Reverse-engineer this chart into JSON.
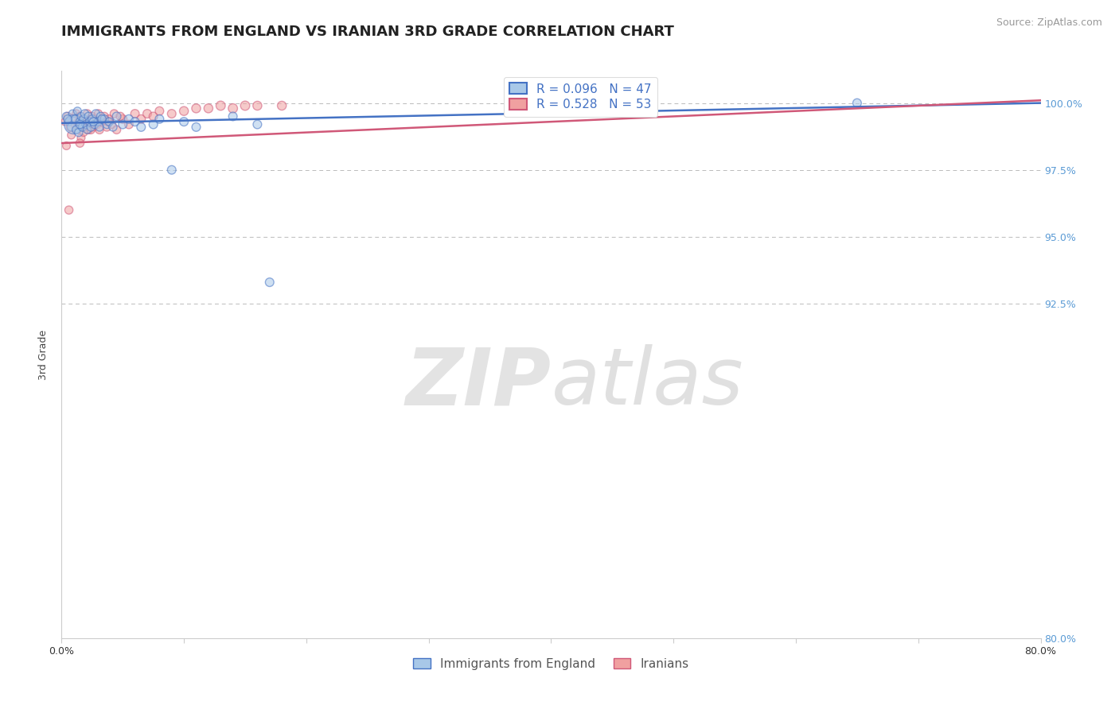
{
  "title": "IMMIGRANTS FROM ENGLAND VS IRANIAN 3RD GRADE CORRELATION CHART",
  "source": "Source: ZipAtlas.com",
  "ylabel": "3rd Grade",
  "legend_labels": [
    "Immigrants from England",
    "Iranians"
  ],
  "legend_r_n": [
    {
      "r": 0.096,
      "n": 47
    },
    {
      "r": 0.528,
      "n": 53
    }
  ],
  "blue_color": "#a8c8e8",
  "pink_color": "#f0a0a0",
  "trend_blue": "#4472c4",
  "trend_pink": "#d05878",
  "xlim": [
    0.0,
    80.0
  ],
  "ylim": [
    80.0,
    101.2
  ],
  "yticks": [
    80.0,
    92.5,
    95.0,
    97.5,
    100.0
  ],
  "ytick_labels": [
    "80.0%",
    "92.5%",
    "95.0%",
    "97.5%",
    "100.0%"
  ],
  "xticks": [
    0.0,
    10.0,
    20.0,
    30.0,
    40.0,
    50.0,
    60.0,
    70.0,
    80.0
  ],
  "xtick_labels": [
    "0.0%",
    "",
    "",
    "",
    "",
    "",
    "",
    "",
    "80.0%"
  ],
  "blue_scatter_x": [
    0.4,
    0.6,
    0.8,
    0.9,
    1.0,
    1.1,
    1.2,
    1.3,
    1.4,
    1.5,
    1.6,
    1.7,
    1.8,
    1.9,
    2.0,
    2.1,
    2.2,
    2.3,
    2.4,
    2.5,
    2.7,
    2.8,
    3.0,
    3.1,
    3.2,
    3.5,
    3.7,
    3.9,
    4.2,
    4.5,
    5.0,
    5.5,
    6.0,
    6.5,
    7.5,
    8.0,
    9.0,
    10.0,
    11.0,
    14.0,
    16.0,
    65.0,
    0.5,
    1.5,
    2.6,
    3.3,
    17.0
  ],
  "blue_scatter_y": [
    99.5,
    99.3,
    99.1,
    99.6,
    99.2,
    99.4,
    99.0,
    99.7,
    98.9,
    99.3,
    99.5,
    99.1,
    99.4,
    99.6,
    99.2,
    99.0,
    99.5,
    99.3,
    99.1,
    99.4,
    99.2,
    99.6,
    99.3,
    99.1,
    99.5,
    99.4,
    99.2,
    99.3,
    99.1,
    99.5,
    99.2,
    99.4,
    99.3,
    99.1,
    99.2,
    99.4,
    97.5,
    99.3,
    99.1,
    99.5,
    99.2,
    100.0,
    99.4,
    99.2,
    99.3,
    99.4,
    93.3
  ],
  "blue_scatter_size": [
    55,
    50,
    55,
    50,
    300,
    50,
    55,
    50,
    55,
    55,
    50,
    55,
    55,
    55,
    55,
    50,
    55,
    55,
    55,
    55,
    55,
    55,
    55,
    55,
    55,
    55,
    55,
    55,
    55,
    60,
    60,
    60,
    60,
    60,
    60,
    60,
    60,
    60,
    60,
    60,
    60,
    60,
    55,
    55,
    55,
    55,
    60
  ],
  "pink_scatter_x": [
    0.3,
    0.5,
    0.7,
    0.8,
    1.0,
    1.1,
    1.2,
    1.3,
    1.4,
    1.5,
    1.6,
    1.7,
    1.8,
    1.9,
    2.0,
    2.1,
    2.2,
    2.3,
    2.5,
    2.6,
    2.7,
    2.9,
    3.0,
    3.1,
    3.3,
    3.5,
    3.7,
    3.9,
    4.1,
    4.3,
    4.5,
    5.0,
    5.5,
    6.0,
    6.5,
    7.0,
    7.5,
    8.0,
    9.0,
    10.0,
    11.0,
    12.0,
    13.0,
    14.0,
    15.0,
    16.0,
    18.0,
    0.6,
    1.5,
    2.4,
    3.8,
    4.8,
    0.4
  ],
  "pink_scatter_y": [
    99.3,
    99.5,
    99.1,
    98.8,
    99.4,
    99.2,
    99.6,
    99.0,
    99.3,
    99.5,
    98.7,
    99.1,
    98.9,
    99.4,
    99.2,
    99.6,
    99.0,
    99.3,
    99.5,
    99.1,
    99.4,
    99.2,
    99.6,
    99.0,
    99.3,
    99.5,
    99.1,
    99.4,
    99.2,
    99.6,
    99.0,
    99.4,
    99.2,
    99.6,
    99.4,
    99.6,
    99.5,
    99.7,
    99.6,
    99.7,
    99.8,
    99.8,
    99.9,
    99.8,
    99.9,
    99.9,
    99.9,
    96.0,
    98.5,
    99.0,
    99.3,
    99.5,
    98.4
  ],
  "pink_scatter_size": [
    50,
    55,
    50,
    50,
    55,
    55,
    55,
    55,
    55,
    55,
    50,
    55,
    50,
    55,
    55,
    55,
    55,
    55,
    55,
    55,
    55,
    55,
    55,
    55,
    55,
    55,
    55,
    55,
    55,
    55,
    55,
    60,
    60,
    60,
    60,
    60,
    60,
    60,
    60,
    65,
    65,
    65,
    70,
    70,
    70,
    65,
    65,
    55,
    55,
    55,
    55,
    55,
    50
  ],
  "watermark_zip": "ZIP",
  "watermark_atlas": "atlas",
  "title_fontsize": 13,
  "axis_label_fontsize": 9,
  "tick_fontsize": 9,
  "source_fontsize": 9,
  "legend_fontsize": 11,
  "ytick_color": "#5b9bd5",
  "grid_color": "#bbbbbb"
}
